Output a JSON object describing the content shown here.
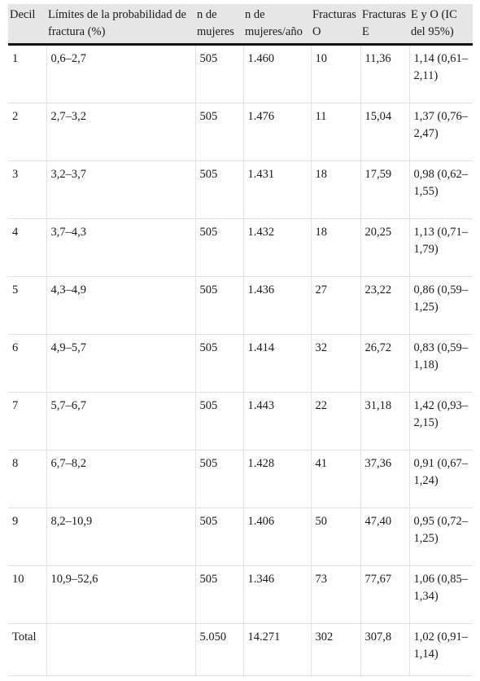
{
  "headers": [
    "Decil",
    "Límites de la probabilidad de fractura (%)",
    "n de mujeres",
    "n de mujeres/año",
    "Fracturas O",
    "Fracturas E",
    "E y O (IC del 95%)"
  ],
  "rows": [
    [
      "1",
      "0,6–2,7",
      "505",
      "1.460",
      "10",
      "11,36",
      "1,14 (0,61–2,11)"
    ],
    [
      "2",
      "2,7–3,2",
      "505",
      "1.476",
      "11",
      "15,04",
      "1,37 (0,76–2,47)"
    ],
    [
      "3",
      "3,2–3,7",
      "505",
      "1.431",
      "18",
      "17,59",
      "0,98 (0,62–1,55)"
    ],
    [
      "4",
      "3,7–4,3",
      "505",
      "1.432",
      "18",
      "20,25",
      "1,13 (0,71–1,79)"
    ],
    [
      "5",
      "4,3–4,9",
      "505",
      "1.436",
      "27",
      "23,22",
      "0,86 (0,59–1,25)"
    ],
    [
      "6",
      "4,9–5,7",
      "505",
      "1.414",
      "32",
      "26,72",
      "0,83 (0,59–1,18)"
    ],
    [
      "7",
      "5,7–6,7",
      "505",
      "1.443",
      "22",
      "31,18",
      "1,42 (0,93–2,15)"
    ],
    [
      "8",
      "6,7–8,2",
      "505",
      "1.428",
      "41",
      "37,36",
      "0,91 (0,67–1,24)"
    ],
    [
      "9",
      "8,2–10,9",
      "505",
      "1.406",
      "50",
      "47,40",
      "0,95 (0,72–1,25)"
    ],
    [
      "10",
      "10,9–52,6",
      "505",
      "1.346",
      "73",
      "77,67",
      "1,06 (0,85–1,34)"
    ],
    [
      "Total",
      "",
      "5.050",
      "14.271",
      "302",
      "307,8",
      "1,02 (0,91–1,14)"
    ]
  ]
}
